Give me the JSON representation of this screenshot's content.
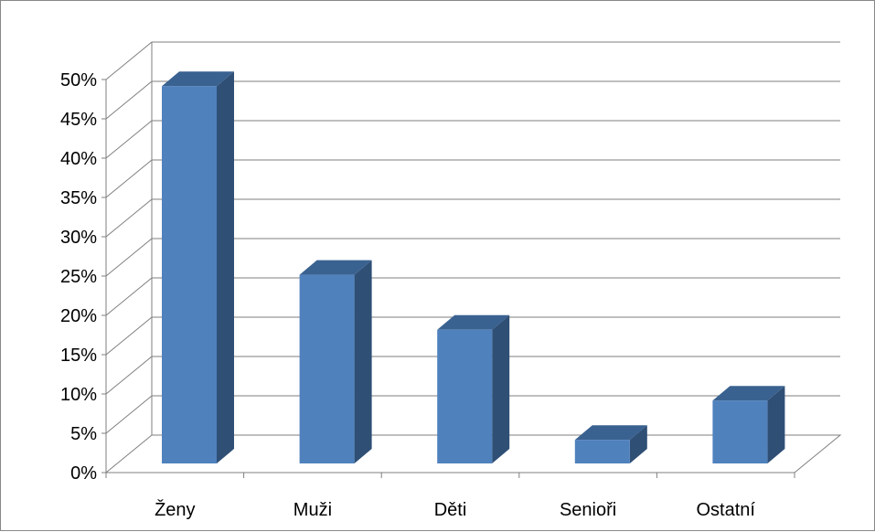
{
  "chart_data": {
    "type": "bar",
    "style": "3d-column",
    "title": "",
    "xlabel": "",
    "ylabel": "",
    "categories": [
      "Ženy",
      "Muži",
      "Děti",
      "Senioři",
      "Ostatní"
    ],
    "values": [
      48,
      24,
      17,
      3,
      8
    ],
    "value_format": "percent",
    "ylim": [
      0,
      50
    ],
    "y_ticks": [
      "0%",
      "5%",
      "10%",
      "15%",
      "20%",
      "25%",
      "30%",
      "35%",
      "40%",
      "45%",
      "50%"
    ],
    "grid": true,
    "legend": "none",
    "colors": {
      "bar_front": "#4f81bd",
      "bar_side": "#2f4f75",
      "bar_top": "#3a6290",
      "grid": "#7f7f7f"
    }
  }
}
